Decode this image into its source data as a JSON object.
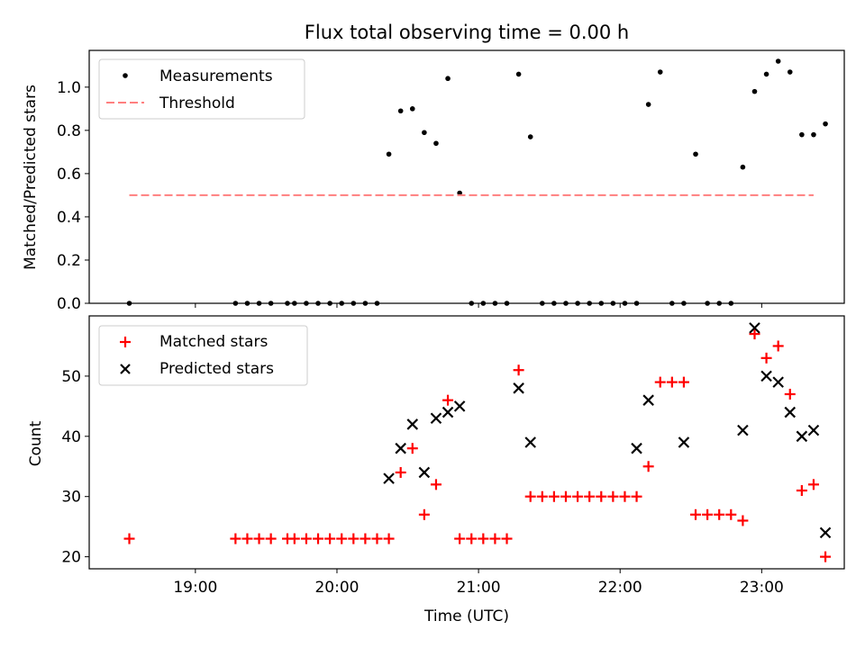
{
  "chart_data": [
    {
      "type": "scatter",
      "title": "Flux total observing time = 0.00 h",
      "xlabel": "",
      "ylabel": "Matched/Predicted stars",
      "ylim": [
        0,
        1.17
      ],
      "yticks": [
        "0.0",
        "0.2",
        "0.4",
        "0.6",
        "0.8",
        "1.0"
      ],
      "legend_position": "top-left",
      "series": [
        {
          "name": "Measurements",
          "marker": "dot",
          "color": "#000000",
          "x": [
            "18:32",
            "19:17",
            "19:22",
            "19:27",
            "19:32",
            "19:39",
            "19:42",
            "19:47",
            "19:52",
            "19:57",
            "20:02",
            "20:07",
            "20:12",
            "20:17",
            "20:22",
            "20:27",
            "20:32",
            "20:37",
            "20:42",
            "20:47",
            "20:52",
            "20:57",
            "21:02",
            "21:07",
            "21:12",
            "21:17",
            "21:22",
            "21:27",
            "21:32",
            "21:37",
            "21:42",
            "21:47",
            "21:52",
            "21:57",
            "22:02",
            "22:07",
            "22:12",
            "22:17",
            "22:22",
            "22:27",
            "22:32",
            "22:37",
            "22:42",
            "22:47",
            "22:52",
            "22:57",
            "23:02",
            "23:07",
            "23:12",
            "23:17",
            "23:22"
          ],
          "y": [
            0.0,
            0.0,
            0.0,
            0.0,
            0.0,
            0.0,
            0.0,
            0.0,
            0.0,
            0.0,
            0.0,
            0.0,
            0.0,
            0.0,
            0.69,
            0.89,
            0.9,
            0.79,
            0.74,
            1.04,
            0.51,
            0.0,
            0.0,
            0.0,
            0.0,
            1.06,
            0.77,
            0.0,
            0.0,
            0.0,
            0.0,
            0.0,
            0.0,
            0.0,
            0.0,
            0.0,
            0.92,
            1.07,
            0.0,
            0.0,
            0.69,
            0.0,
            0.0,
            0.0,
            0.63,
            0.98,
            1.06,
            1.12,
            1.07,
            0.78,
            0.78
          ]
        },
        {
          "name": "Threshold",
          "marker": "dashed-line",
          "color": "#ff7f7f",
          "x": [
            "18:32",
            "23:22"
          ],
          "y": [
            0.5,
            0.5
          ]
        }
      ]
    },
    {
      "type": "scatter",
      "title": "",
      "xlabel": "Time (UTC)",
      "ylabel": "Count",
      "ylim": [
        18,
        60
      ],
      "yticks": [
        "20",
        "30",
        "40",
        "50"
      ],
      "xticks": [
        "19:00",
        "20:00",
        "21:00",
        "22:00",
        "23:00"
      ],
      "legend_position": "top-left",
      "series": [
        {
          "name": "Matched stars",
          "marker": "plus",
          "color": "#ff0000",
          "x": [
            "18:32",
            "19:17",
            "19:22",
            "19:27",
            "19:32",
            "19:39",
            "19:42",
            "19:47",
            "19:52",
            "19:57",
            "20:02",
            "20:07",
            "20:12",
            "20:17",
            "20:22",
            "20:27",
            "20:32",
            "20:37",
            "20:42",
            "20:47",
            "20:52",
            "20:57",
            "21:02",
            "21:07",
            "21:12",
            "21:17",
            "21:22",
            "21:27",
            "21:32",
            "21:37",
            "21:42",
            "21:47",
            "21:52",
            "21:57",
            "22:02",
            "22:07",
            "22:12",
            "22:17",
            "22:22",
            "22:27",
            "22:32",
            "22:37",
            "22:42",
            "22:47",
            "22:52",
            "22:57",
            "23:02",
            "23:07",
            "23:12",
            "23:17",
            "23:22"
          ],
          "y": [
            23,
            23,
            23,
            23,
            23,
            23,
            23,
            23,
            23,
            23,
            23,
            23,
            23,
            23,
            23,
            34,
            38,
            27,
            32,
            46,
            23,
            23,
            23,
            23,
            23,
            51,
            30,
            30,
            30,
            30,
            30,
            30,
            30,
            30,
            30,
            30,
            35,
            49,
            49,
            49,
            27,
            27,
            27,
            27,
            26,
            57,
            53,
            55,
            47,
            31,
            32
          ]
        },
        {
          "name": "Predicted stars",
          "marker": "x",
          "color": "#000000",
          "x": [
            "20:22",
            "20:27",
            "20:32",
            "20:37",
            "20:42",
            "20:47",
            "20:52",
            "21:17",
            "21:22",
            "22:07",
            "22:12",
            "22:27",
            "22:52",
            "22:57",
            "23:02",
            "23:07",
            "23:12",
            "23:17",
            "23:22",
            "23:27"
          ],
          "y": [
            33,
            38,
            42,
            34,
            43,
            44,
            45,
            48,
            39,
            38,
            46,
            39,
            41,
            58,
            50,
            49,
            44,
            40,
            41,
            24
          ]
        }
      ]
    }
  ],
  "extra_points": {
    "bottom_last_matched": {
      "x": "23:27",
      "y": 20
    },
    "top_last_measurement": {
      "x": "23:27",
      "y": 0.83
    }
  }
}
